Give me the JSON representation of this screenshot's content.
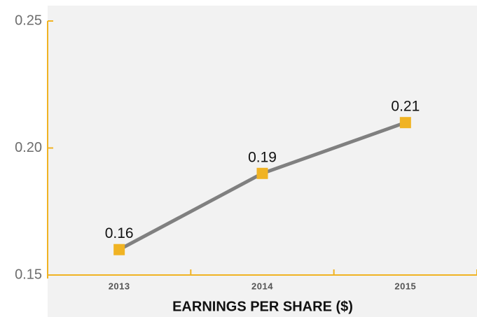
{
  "chart_data": {
    "type": "line",
    "title": "EARNINGS PER SHARE ($)",
    "categories": [
      "2013",
      "2014",
      "2015"
    ],
    "series": [
      {
        "name": "Earnings per share",
        "color": "#808080",
        "marker_color": "#f0b323",
        "values": [
          0.16,
          0.19,
          0.21
        ]
      }
    ],
    "ylim": [
      0.15,
      0.25
    ],
    "yticks": [
      0.15,
      {
        "value": 0.2,
        "label": "0.20"
      },
      0.25
    ],
    "axis_color": "#f0b323"
  }
}
